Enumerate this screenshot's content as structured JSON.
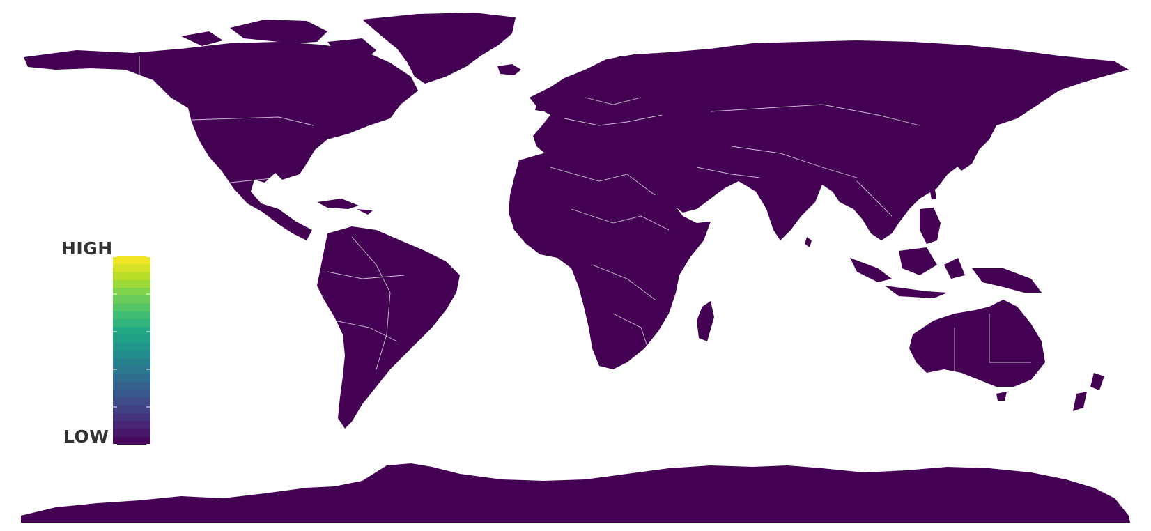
{
  "legend": {
    "high_label": "HIGH",
    "low_label": "LOW",
    "colors": [
      "#440154",
      "#482475",
      "#414487",
      "#355f8d",
      "#2a788e",
      "#21918c",
      "#22a884",
      "#44bf70",
      "#7ad151",
      "#bddf26",
      "#fde725"
    ]
  },
  "map": {
    "land_color": "#440154",
    "ocean_color": "#ffffff",
    "border_color": "#ffffff",
    "hotspot_colors": [
      "#fde725",
      "#bddf26",
      "#22a884",
      "#2a788e"
    ]
  }
}
